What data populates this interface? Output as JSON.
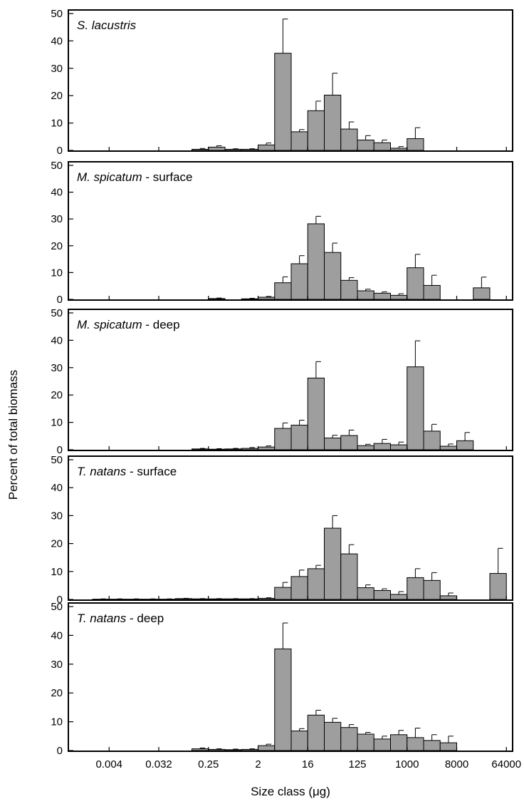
{
  "figure": {
    "ylabel": "Percent of total biomass",
    "xlabel": "Size class (μg)"
  },
  "chart_data": [
    {
      "type": "bar",
      "title_italic": "S. lacustris",
      "title_suffix": "",
      "ylim": [
        0,
        50
      ],
      "yticks": [
        "0",
        "10",
        "20",
        "30",
        "40",
        "50"
      ],
      "xticks": [],
      "values": [
        0,
        0,
        0,
        0,
        0,
        0,
        0.4,
        1.2,
        0.4,
        0.4,
        2.0,
        35.5,
        6.8,
        14.5,
        20.2,
        7.8,
        3.8,
        2.8,
        0.8,
        4.3,
        0,
        0,
        0,
        0,
        0,
        0
      ],
      "errors": [
        0,
        0,
        0,
        0,
        0,
        0,
        0.3,
        0.5,
        0.2,
        0.2,
        0.7,
        12.5,
        0.8,
        3.5,
        8.0,
        2.6,
        1.6,
        1.0,
        0.6,
        4.0,
        0,
        0,
        0,
        0,
        0,
        0
      ]
    },
    {
      "type": "bar",
      "title_italic": "M. spicatum",
      "title_suffix": " - surface",
      "ylim": [
        0,
        50
      ],
      "yticks": [
        "0",
        "10",
        "20",
        "30",
        "40",
        "50"
      ],
      "xticks": [],
      "values": [
        0,
        0,
        0,
        0,
        0,
        0,
        0,
        0.3,
        0,
        0.2,
        0.8,
        6.2,
        13.3,
        28.2,
        17.5,
        7.1,
        3.2,
        2.3,
        1.5,
        11.8,
        5.2,
        0,
        0,
        4.3,
        0,
        0
      ],
      "errors": [
        0,
        0,
        0,
        0,
        0,
        0,
        0,
        0.2,
        0,
        0.2,
        0.3,
        2.2,
        3.0,
        2.8,
        3.5,
        1.0,
        0.6,
        0.5,
        0.6,
        5.0,
        3.8,
        0,
        0,
        4.0,
        0,
        0
      ]
    },
    {
      "type": "bar",
      "title_italic": "M. spicatum",
      "title_suffix": " - deep",
      "ylim": [
        0,
        50
      ],
      "yticks": [
        "0",
        "10",
        "20",
        "30",
        "40",
        "50"
      ],
      "xticks": [],
      "values": [
        0,
        0,
        0,
        0,
        0,
        0,
        0.3,
        0.2,
        0.3,
        0.5,
        1.0,
        7.8,
        9.0,
        26.2,
        4.3,
        5.2,
        1.5,
        2.3,
        1.8,
        30.3,
        6.8,
        1.3,
        3.3,
        0,
        0,
        0
      ],
      "errors": [
        0,
        0,
        0,
        0,
        0,
        0,
        0.2,
        0.2,
        0.2,
        0.3,
        0.4,
        2.0,
        1.8,
        6.0,
        1.0,
        2.0,
        0.5,
        1.5,
        1.0,
        9.5,
        2.5,
        0.8,
        3.0,
        0,
        0,
        0
      ]
    },
    {
      "type": "bar",
      "title_italic": "T. natans",
      "title_suffix": " - surface",
      "ylim": [
        0,
        50
      ],
      "yticks": [
        "0",
        "10",
        "20",
        "30",
        "40",
        "50"
      ],
      "xticks": [],
      "values": [
        0.1,
        0.1,
        0.1,
        0.1,
        0.1,
        0.3,
        0.2,
        0.2,
        0.2,
        0.2,
        0.4,
        4.3,
        8.2,
        11.0,
        25.5,
        16.3,
        4.2,
        3.2,
        1.8,
        7.8,
        6.8,
        1.3,
        0,
        0,
        9.3,
        0
      ],
      "errors": [
        0.1,
        0.1,
        0.1,
        0.1,
        0.1,
        0.1,
        0.1,
        0.1,
        0.1,
        0.1,
        0.2,
        1.8,
        2.3,
        1.2,
        4.5,
        3.3,
        1.0,
        0.6,
        1.0,
        3.2,
        2.8,
        1.0,
        0,
        0,
        9.0,
        0
      ]
    },
    {
      "type": "bar",
      "title_italic": "T. natans",
      "title_suffix": " - deep",
      "ylim": [
        0,
        50
      ],
      "yticks": [
        "0",
        "10",
        "20",
        "30",
        "40",
        "50"
      ],
      "xticks": [
        "0.004",
        "0.032",
        "0.25",
        "2",
        "16",
        "125",
        "1000",
        "8000",
        "64000"
      ],
      "values": [
        0,
        0,
        0,
        0,
        0,
        0,
        0.6,
        0.4,
        0.3,
        0.4,
        1.7,
        35.3,
        6.8,
        12.3,
        9.8,
        8.0,
        5.7,
        4.0,
        5.5,
        4.5,
        3.5,
        2.7,
        0,
        0,
        0,
        0
      ],
      "errors": [
        0,
        0,
        0,
        0,
        0,
        0,
        0.3,
        0.2,
        0.2,
        0.2,
        0.5,
        9.0,
        0.8,
        1.7,
        1.4,
        1.0,
        0.6,
        1.0,
        1.5,
        3.3,
        2.0,
        2.3,
        0,
        0,
        0,
        0
      ]
    }
  ]
}
